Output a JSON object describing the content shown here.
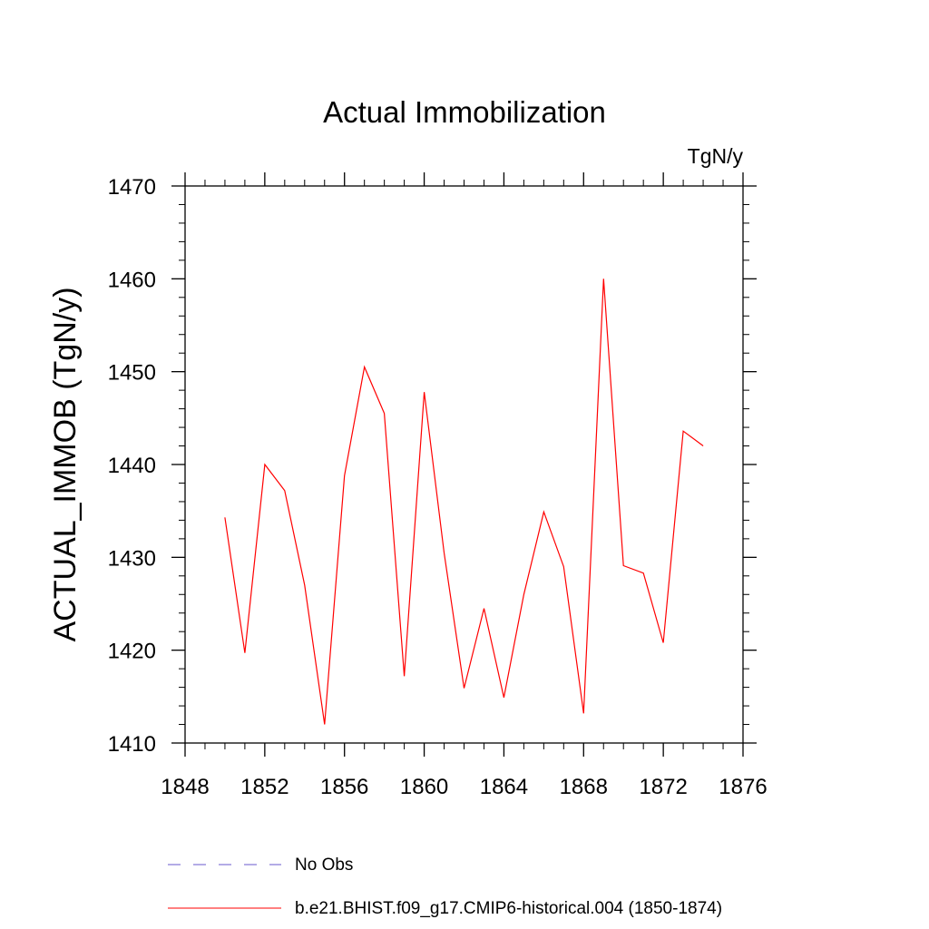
{
  "chart_data": {
    "type": "line",
    "title": "Actual Immobilization",
    "units_label": "TgN/y",
    "xlabel": "",
    "ylabel": "ACTUAL_IMMOB  (TgN/y)",
    "xlim": [
      1848,
      1876
    ],
    "ylim": [
      1410,
      1470
    ],
    "x_ticks": [
      1848,
      1852,
      1856,
      1860,
      1864,
      1868,
      1872,
      1876
    ],
    "y_ticks": [
      1410,
      1420,
      1430,
      1440,
      1450,
      1460,
      1470
    ],
    "x_tick_labels": [
      "1848",
      "1852",
      "1856",
      "1860",
      "1864",
      "1868",
      "1872",
      "1876"
    ],
    "y_tick_labels": [
      "1410",
      "1420",
      "1430",
      "1440",
      "1450",
      "1460",
      "1470"
    ],
    "grid": false,
    "legend_placement": "bottom",
    "series": [
      {
        "name": "b.e21.BHIST.f09_g17.CMIP6-historical.004 (1850-1874)",
        "color": "#ff0000",
        "style": "solid",
        "x": [
          1850,
          1851,
          1852,
          1853,
          1854,
          1855,
          1856,
          1857,
          1858,
          1859,
          1860,
          1861,
          1862,
          1863,
          1864,
          1865,
          1866,
          1867,
          1868,
          1869,
          1870,
          1871,
          1872,
          1873,
          1874
        ],
        "y": [
          1434.3,
          1419.7,
          1440.0,
          1437.2,
          1427.0,
          1412.0,
          1438.8,
          1450.5,
          1445.5,
          1417.2,
          1447.8,
          1430.5,
          1415.9,
          1424.5,
          1414.9,
          1426.0,
          1434.9,
          1429.0,
          1413.2,
          1460.0,
          1429.1,
          1428.3,
          1420.8,
          1443.6,
          1442.0
        ]
      }
    ],
    "legend": [
      {
        "label": "No Obs",
        "color": "#6a5acd",
        "style": "dashed"
      },
      {
        "label": "b.e21.BHIST.f09_g17.CMIP6-historical.004 (1850-1874)",
        "color": "#ff0000",
        "style": "solid"
      }
    ]
  }
}
